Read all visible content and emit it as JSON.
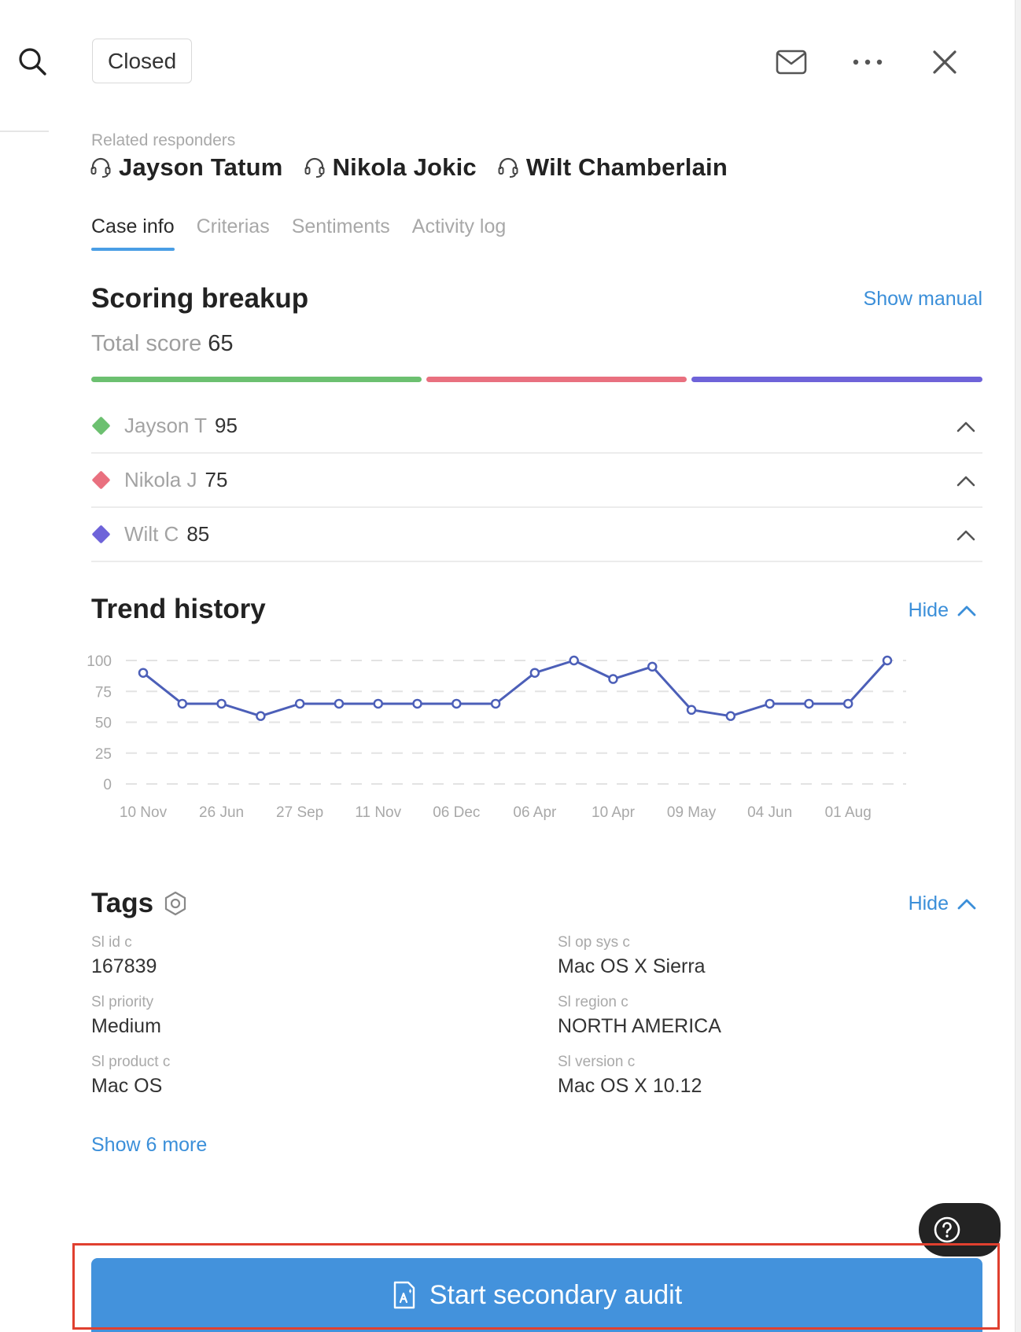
{
  "header": {
    "status": "Closed",
    "icons": [
      "search-icon",
      "mail-icon",
      "more-horizontal-icon",
      "close-icon"
    ]
  },
  "responders": {
    "label": "Related responders",
    "names": [
      "Jayson Tatum",
      "Nikola Jokic",
      "Wilt Chamberlain"
    ]
  },
  "tabs": [
    {
      "label": "Case info",
      "active": true
    },
    {
      "label": "Criterias",
      "active": false
    },
    {
      "label": "Sentiments",
      "active": false
    },
    {
      "label": "Activity log",
      "active": false
    }
  ],
  "scoring": {
    "title": "Scoring breakup",
    "show_manual": "Show manual",
    "total_label": "Total score",
    "total_value": "65",
    "rows": [
      {
        "name": "Jayson T",
        "score": "95",
        "color": "#6cc070"
      },
      {
        "name": "Nikola J",
        "score": "75",
        "color": "#e9707f"
      },
      {
        "name": "Wilt C",
        "score": "85",
        "color": "#6e63d9"
      }
    ]
  },
  "trend": {
    "title": "Trend history",
    "hide_label": "Hide"
  },
  "chart_data": {
    "type": "line",
    "x": [
      "10 Nov",
      "",
      "26 Jun",
      "",
      "27 Sep",
      "",
      "11 Nov",
      "",
      "06 Dec",
      "",
      "06 Apr",
      "",
      "10 Apr",
      "",
      "09 May",
      "",
      "04 Jun",
      "",
      "01 Aug",
      ""
    ],
    "x_tick_labels": [
      "10 Nov",
      "26 Jun",
      "27 Sep",
      "11 Nov",
      "06 Dec",
      "06 Apr",
      "10 Apr",
      "09 May",
      "04 Jun",
      "01 Aug"
    ],
    "series": [
      {
        "values": [
          90,
          65,
          65,
          55,
          65,
          65,
          65,
          65,
          65,
          65,
          90,
          100,
          85,
          95,
          60,
          55,
          65,
          65,
          65,
          100
        ]
      }
    ],
    "yticks": [
      100,
      75,
      50,
      25,
      0
    ],
    "ylim": [
      0,
      100
    ],
    "grid": true,
    "line_color": "#4c5fb8"
  },
  "tags": {
    "title": "Tags",
    "hide_label": "Hide",
    "items": [
      {
        "label": "Sl id c",
        "value": "167839"
      },
      {
        "label": "Sl op sys c",
        "value": "Mac OS X Sierra"
      },
      {
        "label": "Sl priority",
        "value": "Medium"
      },
      {
        "label": "Sl region c",
        "value": "NORTH AMERICA"
      },
      {
        "label": "Sl product c",
        "value": "Mac OS"
      },
      {
        "label": "Sl version c",
        "value": "Mac OS X 10.12"
      }
    ],
    "show_more": "Show 6 more"
  },
  "actions": {
    "primary": "Start secondary audit",
    "help_icon": "question-circle-icon"
  }
}
